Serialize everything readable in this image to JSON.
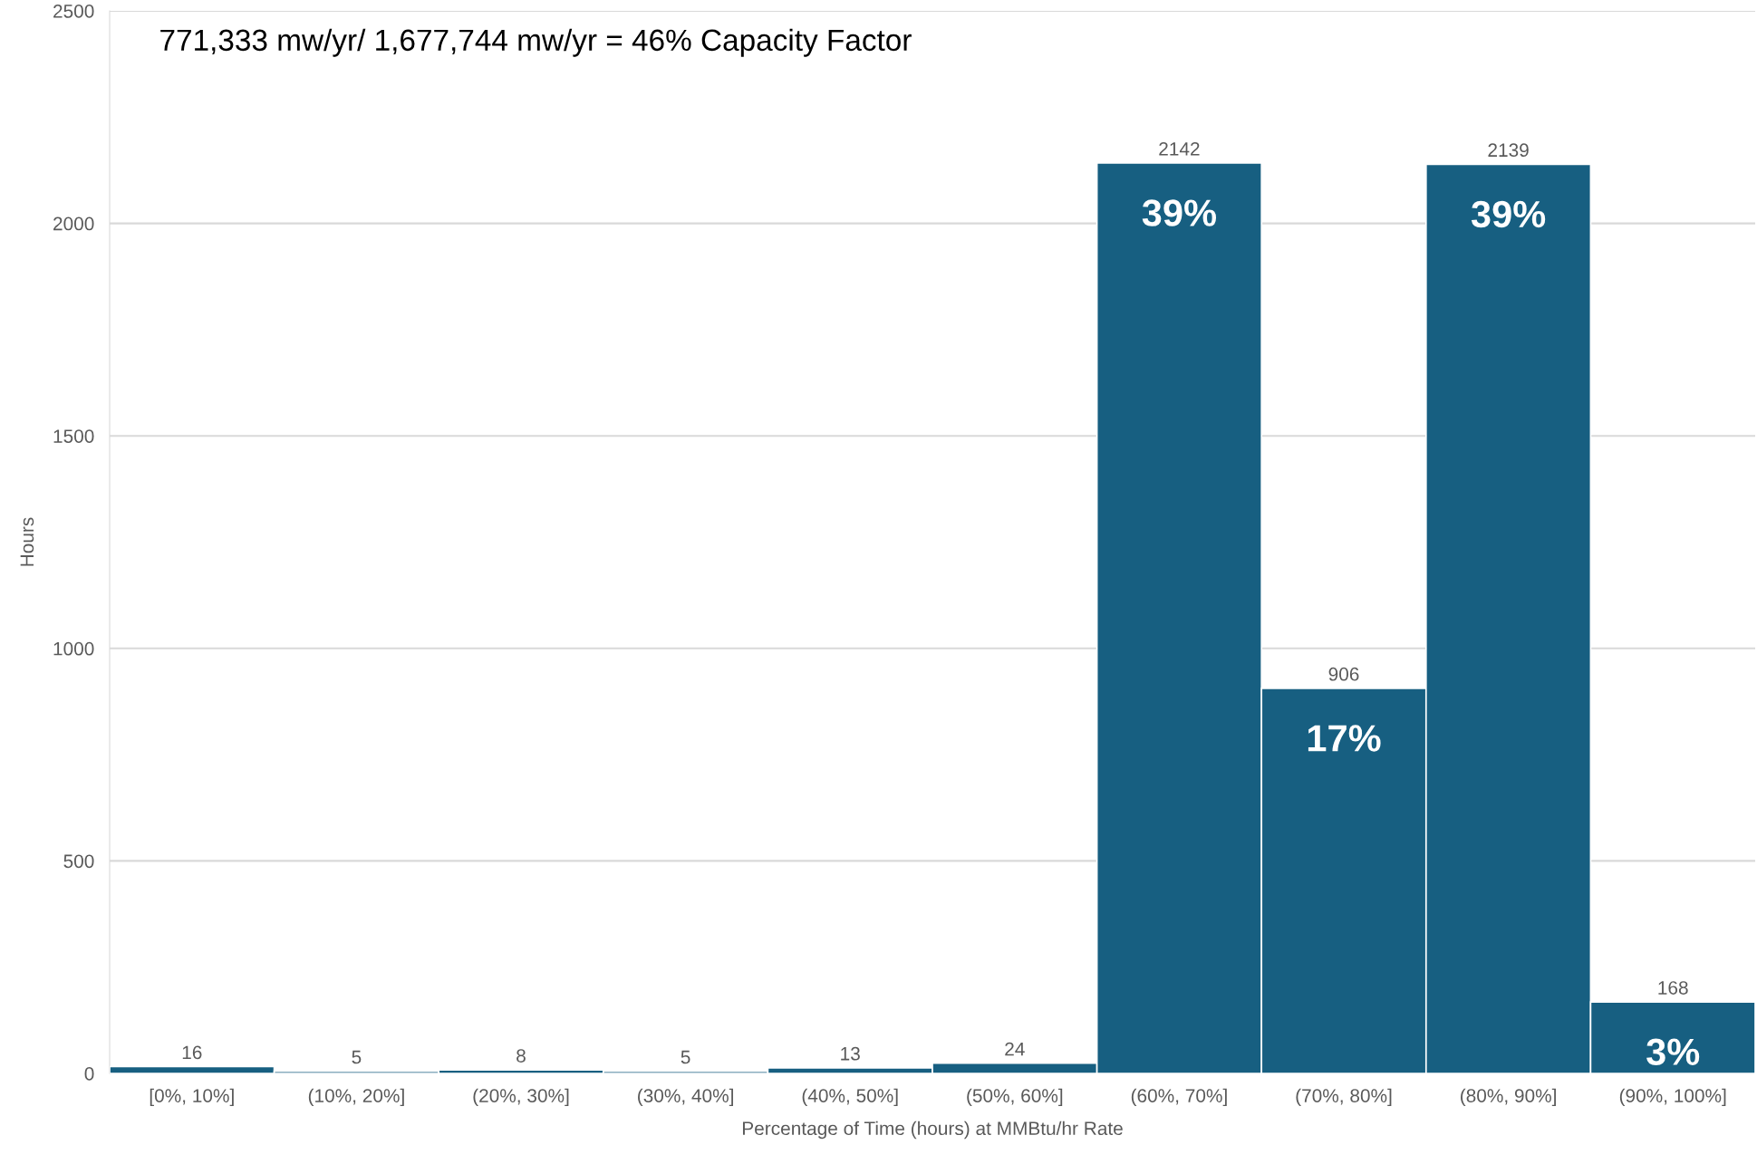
{
  "chart_data": {
    "type": "bar",
    "title": "771,333 mw/yr/ 1,677,744 mw/yr = 46% Capacity Factor",
    "xlabel": "Percentage of Time (hours) at MMBtu/hr Rate",
    "ylabel": "Hours",
    "categories": [
      "[0%, 10%]",
      "(10%, 20%]",
      "(20%, 30%]",
      "(30%, 40%]",
      "(40%, 50%]",
      "(50%, 60%]",
      "(60%, 70%]",
      "(70%, 80%]",
      "(80%, 90%]",
      "(90%, 100%]"
    ],
    "values": [
      16,
      5,
      8,
      5,
      13,
      24,
      2142,
      906,
      2139,
      168
    ],
    "color": "#175f81",
    "data_labels": true,
    "grid": "y",
    "ylim": [
      0,
      2500
    ],
    "yticks": [
      0,
      500,
      1000,
      1500,
      2000,
      2500
    ],
    "annotations": [
      "39%",
      "17%",
      "39%",
      "3%"
    ]
  }
}
